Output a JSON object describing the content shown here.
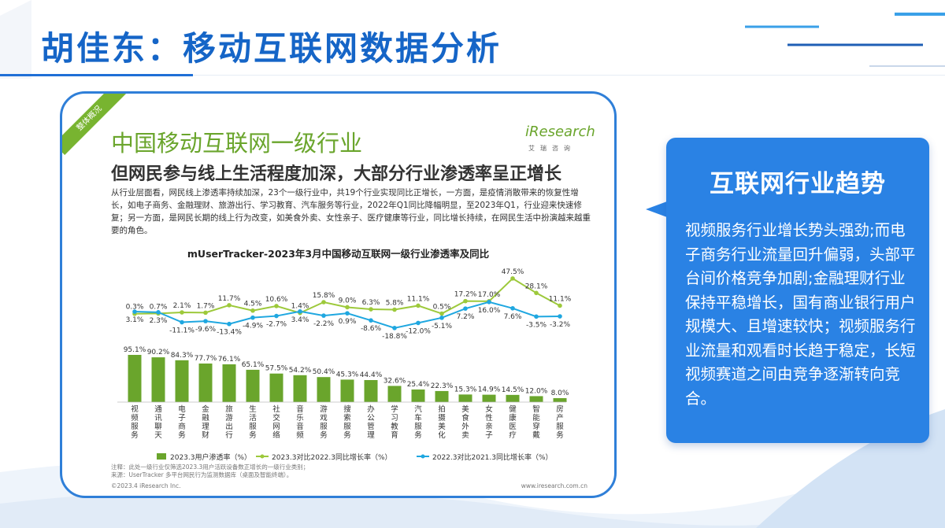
{
  "slide": {
    "title": "胡佳东：移动互联网数据分析"
  },
  "report": {
    "ribbon": "整体概况",
    "title": "中国移动互联网一级行业",
    "subtitle": "但网民参与线上生活程度加深，大部分行业渗透率呈正增长",
    "brand": "iResearch",
    "brand_sub": "艾瑞咨询",
    "description": "从行业层面看，网民线上渗透率持续加深，23个一级行业中，共19个行业实现同比正增长，一方面，是疫情消散带来的恢复性增长，如电子商务、金融理财、旅游出行、学习教育、汽车服务等行业，2022年Q1同比降幅明显，至2023年Q1，行业迎来快速修复；另一方面，是网民长期的线上行为改变，如美食外卖、女性亲子、医疗健康等行业，同比增长持续，在网民生活中扮演越来越重要的角色。",
    "notes": [
      "注释：此处一级行业仅筛选2023.3用户活跃设备数正增长的一级行业类别；",
      "来源：UserTracker 多平台网民行为监测数据库（桌面及智能终端）。"
    ],
    "copyright": "©2023.4 iResearch Inc.",
    "website": "www.iresearch.com.cn"
  },
  "chart_data": {
    "type": "bar",
    "title": "mUserTracker-2023年3月中国移动互联网一级行业渗透率及同比",
    "categories": [
      "视频服务",
      "通讯聊天",
      "电子商务",
      "金融理财",
      "旅游出行",
      "生活服务",
      "社交网络",
      "音乐音频",
      "游戏服务",
      "搜索服务",
      "办公管理",
      "学习教育",
      "汽车服务",
      "拍摄美化",
      "美食外卖",
      "女性亲子",
      "健康医疗",
      "智能穿戴",
      "房产服务"
    ],
    "series": [
      {
        "name": "2023.3用户渗透率（%）",
        "type": "bar",
        "color": "#6aa52c",
        "values": [
          95.1,
          90.2,
          84.3,
          77.7,
          76.1,
          65.1,
          57.5,
          54.2,
          50.4,
          45.3,
          44.4,
          32.6,
          25.4,
          22.3,
          15.3,
          14.9,
          14.5,
          12.0,
          8.0
        ]
      },
      {
        "name": "2023.3对比2022.3同比增长率（%）",
        "type": "line",
        "color": "#9dc93b",
        "values": [
          0.3,
          0.7,
          2.1,
          1.7,
          11.7,
          4.5,
          10.6,
          1.4,
          15.8,
          9.0,
          6.3,
          5.8,
          11.1,
          0.5,
          17.2,
          17.0,
          47.5,
          28.1,
          11.1
        ]
      },
      {
        "name": "2022.3对比2021.3同比增长率（%）",
        "type": "line",
        "color": "#1fa7e0",
        "values": [
          3.1,
          2.3,
          -11.1,
          -9.6,
          -13.4,
          -4.9,
          -2.7,
          3.4,
          -2.2,
          0.9,
          -8.6,
          -18.8,
          -12.0,
          -5.1,
          7.2,
          16.0,
          7.6,
          -3.5,
          -3.2
        ]
      }
    ],
    "legend": "bottom",
    "ylabel": ""
  },
  "card": {
    "title": "互联网行业趋势",
    "body": "视频服务行业增长势头强劲;而电子商务行业流量回升偏弱，头部平台间价格竞争加剧;金融理财行业保持平稳增长，国有商业银行用户规模大、且增速较快；视频服务行业流量和观看时长趋于稳定，长短视频赛道之间由竞争逐渐转向竞合。"
  }
}
